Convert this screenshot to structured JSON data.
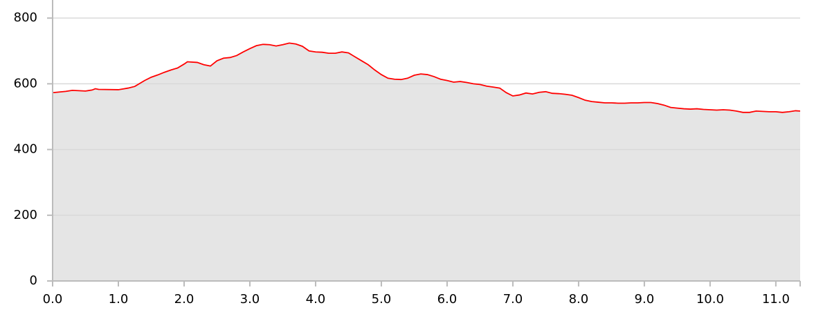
{
  "chart_data": {
    "type": "area",
    "x": [
      0.0,
      0.2,
      0.3,
      0.5,
      0.6,
      0.65,
      0.7,
      1.0,
      1.15,
      1.25,
      1.4,
      1.5,
      1.6,
      1.7,
      1.8,
      1.9,
      2.0,
      2.05,
      2.2,
      2.3,
      2.4,
      2.5,
      2.6,
      2.7,
      2.8,
      2.9,
      3.0,
      3.1,
      3.2,
      3.3,
      3.4,
      3.5,
      3.6,
      3.7,
      3.8,
      3.9,
      4.0,
      4.1,
      4.2,
      4.3,
      4.4,
      4.5,
      4.6,
      4.7,
      4.8,
      4.9,
      5.0,
      5.1,
      5.2,
      5.3,
      5.4,
      5.5,
      5.6,
      5.7,
      5.8,
      5.9,
      6.0,
      6.1,
      6.2,
      6.3,
      6.4,
      6.5,
      6.6,
      6.7,
      6.8,
      6.9,
      7.0,
      7.1,
      7.2,
      7.3,
      7.4,
      7.5,
      7.6,
      7.7,
      7.8,
      7.9,
      8.0,
      8.1,
      8.2,
      8.3,
      8.4,
      8.5,
      8.6,
      8.7,
      8.8,
      8.9,
      9.0,
      9.1,
      9.2,
      9.3,
      9.4,
      9.5,
      9.6,
      9.7,
      9.8,
      9.9,
      10.0,
      10.1,
      10.2,
      10.3,
      10.4,
      10.5,
      10.6,
      10.7,
      10.8,
      10.9,
      11.0,
      11.1,
      11.2,
      11.3,
      11.37
    ],
    "series": [
      {
        "color": "#ff0000",
        "fill": "#e5e5e5",
        "values": [
          573,
          577,
          580,
          578,
          581,
          585,
          583,
          582,
          587,
          592,
          610,
          620,
          627,
          635,
          642,
          648,
          660,
          667,
          665,
          658,
          654,
          670,
          678,
          680,
          686,
          697,
          707,
          716,
          720,
          719,
          715,
          719,
          724,
          721,
          714,
          700,
          697,
          696,
          693,
          693,
          697,
          694,
          682,
          670,
          658,
          642,
          628,
          617,
          614,
          613,
          617,
          626,
          630,
          628,
          622,
          614,
          610,
          605,
          607,
          604,
          600,
          598,
          593,
          590,
          587,
          573,
          563,
          566,
          572,
          569,
          574,
          576,
          571,
          570,
          568,
          565,
          558,
          550,
          546,
          544,
          542,
          542,
          541,
          541,
          542,
          542,
          543,
          543,
          540,
          535,
          528,
          526,
          524,
          523,
          524,
          522,
          521,
          520,
          521,
          520,
          517,
          513,
          513,
          517,
          516,
          515,
          515,
          513,
          515,
          518,
          517
        ]
      }
    ],
    "xlim": [
      0,
      11.37
    ],
    "ylim": [
      0,
      855
    ],
    "xticks": [
      {
        "value": 0,
        "label": "0.0"
      },
      {
        "value": 1,
        "label": "1.0"
      },
      {
        "value": 2,
        "label": "2.0"
      },
      {
        "value": 3,
        "label": "3.0"
      },
      {
        "value": 4,
        "label": "4.0"
      },
      {
        "value": 5,
        "label": "5.0"
      },
      {
        "value": 6,
        "label": "6.0"
      },
      {
        "value": 7,
        "label": "7.0"
      },
      {
        "value": 8,
        "label": "8.0"
      },
      {
        "value": 9,
        "label": "9.0"
      },
      {
        "value": 10,
        "label": "10.0"
      },
      {
        "value": 11,
        "label": "11.0"
      }
    ],
    "yticks": [
      0,
      200,
      400,
      600,
      800
    ],
    "grid": true
  }
}
